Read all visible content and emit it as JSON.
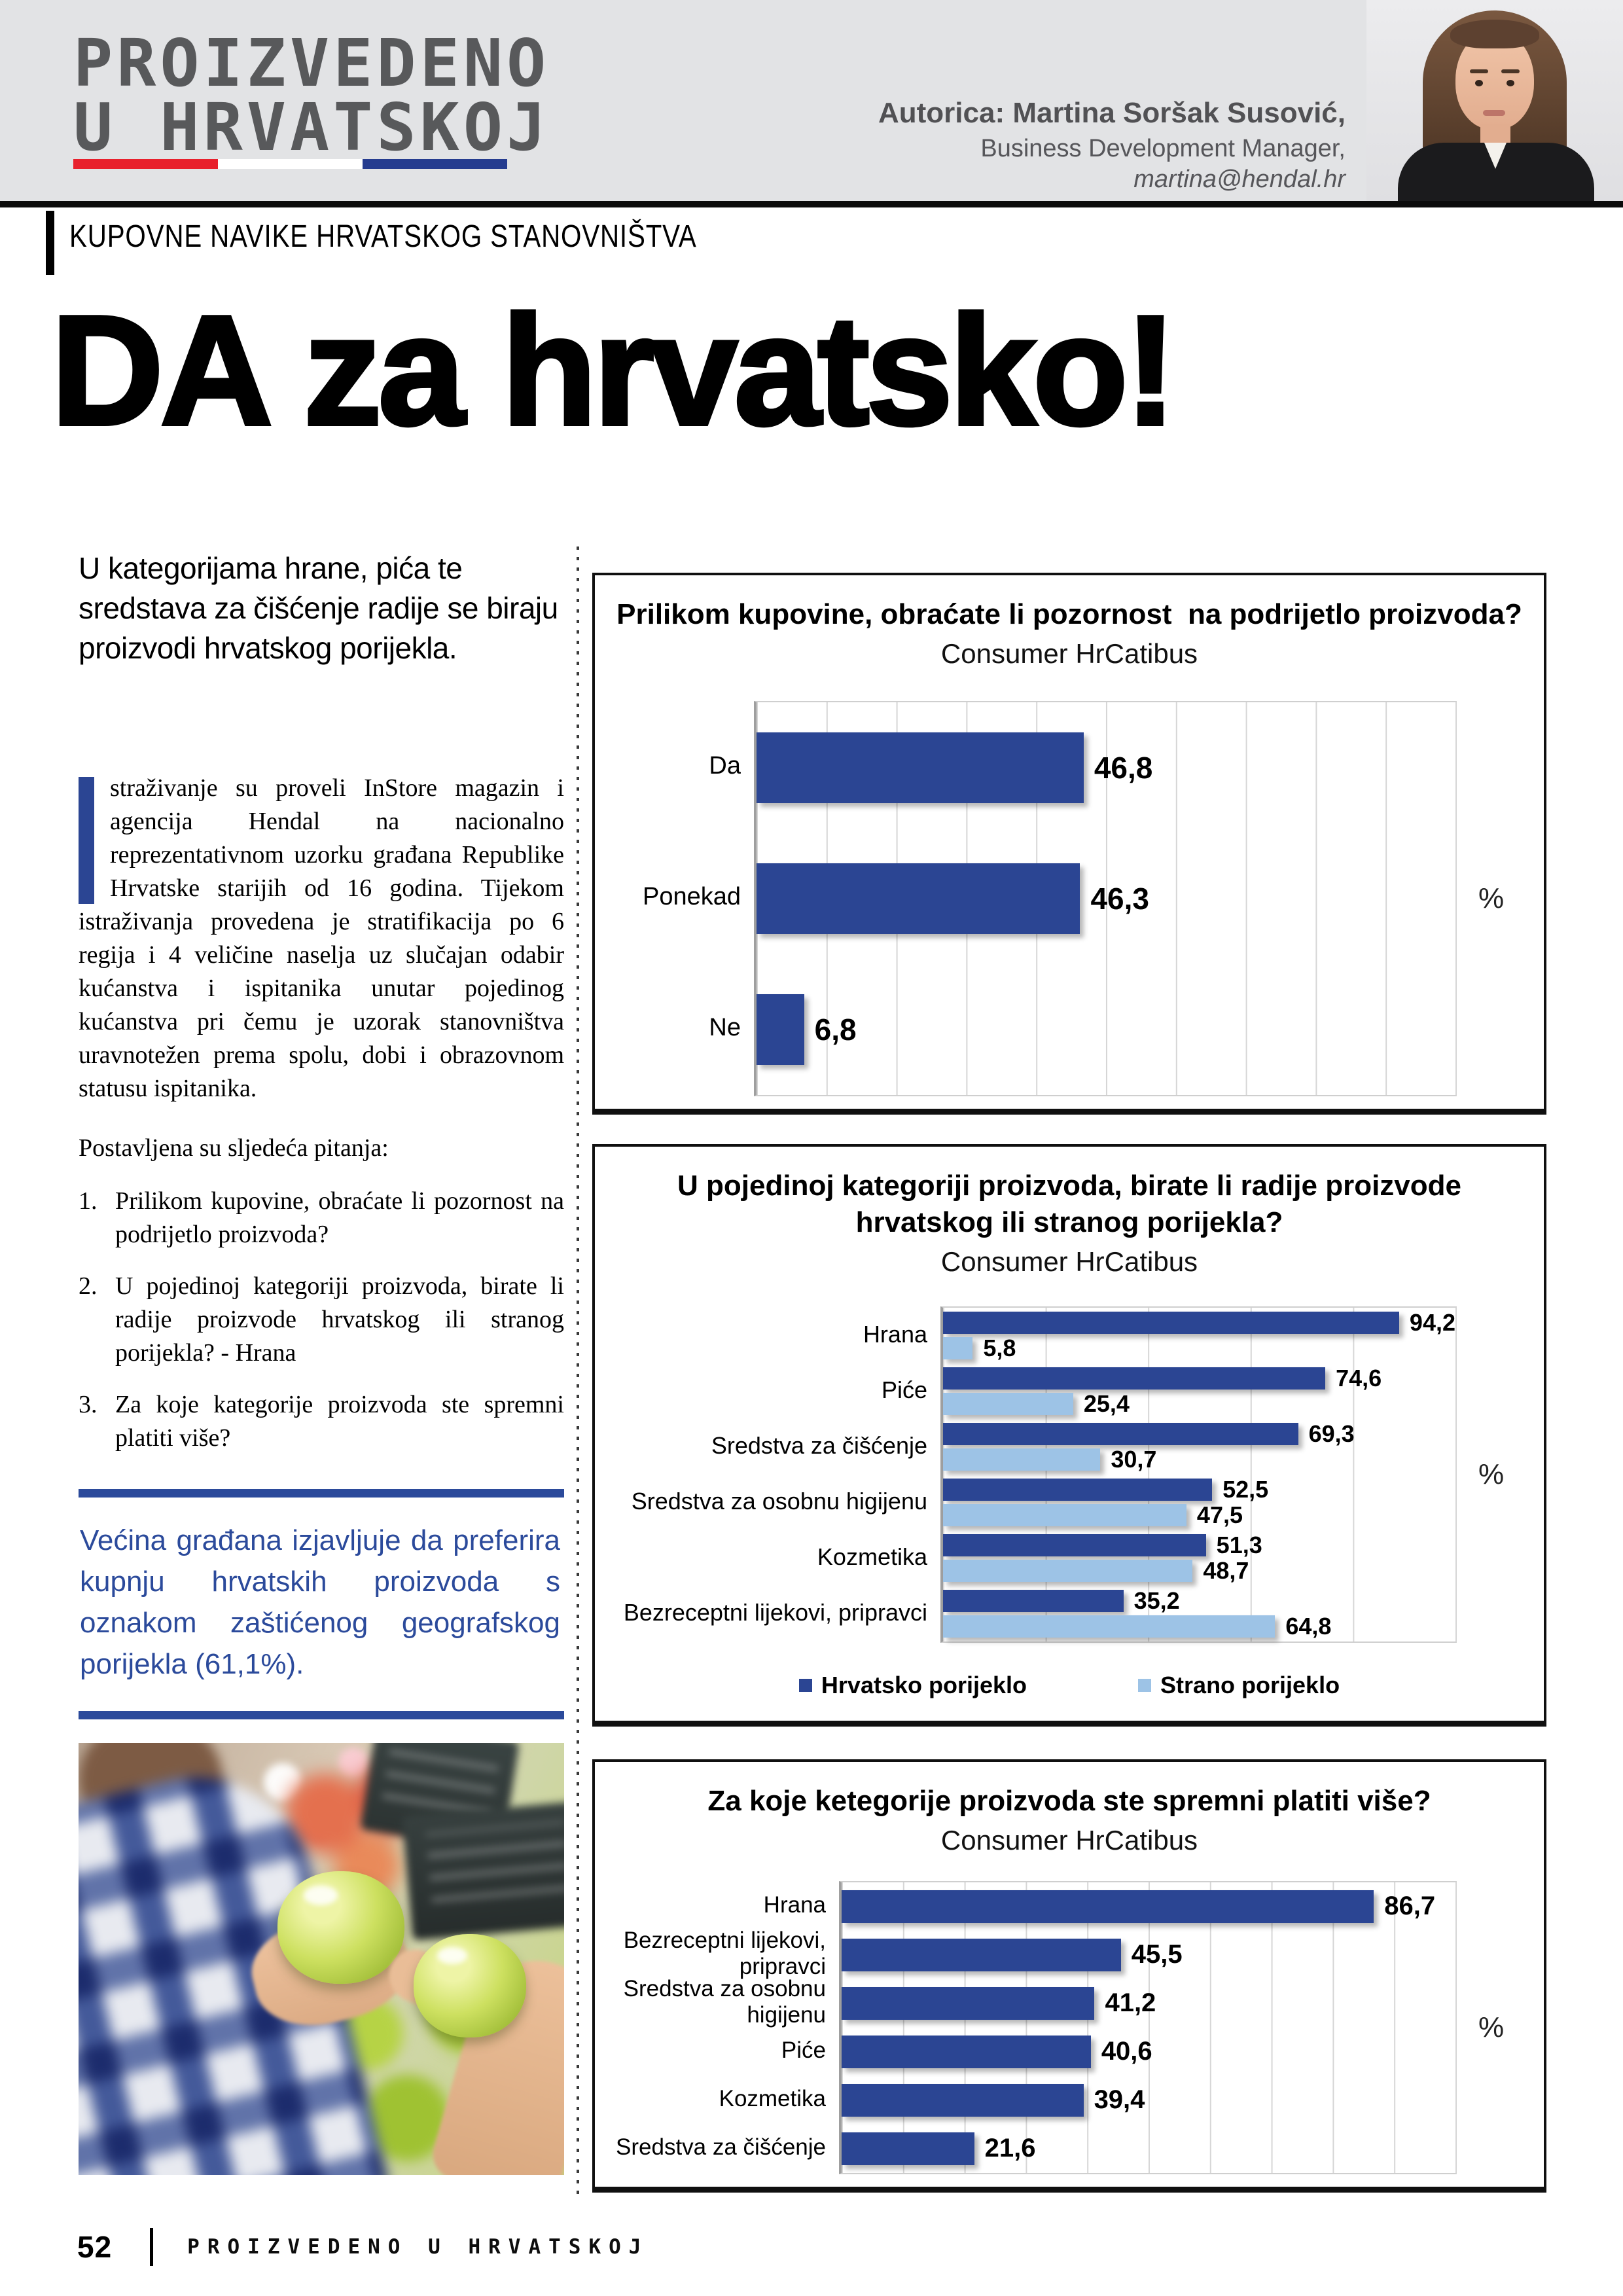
{
  "theme": {
    "navy": "#2B4593",
    "light_blue": "#9DC3E6",
    "callout_blue": "#2B4A9B",
    "logo_gray": "#58595B",
    "band_gray": "#E2E3E5",
    "flag_red": "#E8202C",
    "flag_blue": "#253C8F"
  },
  "header": {
    "logo_line1": "PROIZVEDENO",
    "logo_line2": "U HRVATSKOJ",
    "author_line1": "Autorica: Martina Soršak Susović,",
    "author_line2": "Business Development Manager,",
    "author_line3": "martina@hendal.hr"
  },
  "kicker": "KUPOVNE NAVIKE HRVATSKOG STANOVNIŠTVA",
  "headline": "DA za hrvatsko!",
  "article": {
    "intro": "U kategorijama hrane, pića te sredstava za čišćenje radije se biraju proizvodi hrvatskog porijekla.",
    "body": "straživanje su proveli InStore magazin i agencija Hendal na nacionalno reprezentativnom uzorku građana Republike Hrvatske starijih od 16 godina. Tijekom istraživanja provedena je stratifikacija po 6 regija i 4 veličine naselja uz slučajan odabir kućanstva i ispitanika unutar pojedinog kućanstva pri čemu je uzorak stanovništva uravnotežen prema spolu, dobi i obrazovnom statusu ispitanika.",
    "questions_intro": "Postavljena su sljedeća pitanja:",
    "questions": [
      {
        "num": "1.",
        "text": "Prilikom kupovine, obraćate li pozornost na podrijetlo proizvoda?"
      },
      {
        "num": "2.",
        "text": "U pojedinoj kategoriji proizvoda, birate li radije proizvode hrvatskog ili stranog porijekla? - Hrana"
      },
      {
        "num": "3.",
        "text": "Za koje kategorije proizvoda ste spremni platiti više?"
      }
    ],
    "callout": "Većina građana izjavljuje da preferira kupnju hrvatskih proizvoda s oznakom zaštićenog geografskog porijekla (61,1%)."
  },
  "chart_data": [
    {
      "type": "bar",
      "title": "Prilikom kupovine, obraćate li pozornost  na podrijetlo proizvoda?",
      "subtitle": "Consumer HrCatibus",
      "unit": "%",
      "xlim": [
        0,
        100
      ],
      "grid_step": 10,
      "grid": true,
      "bar_color": "#2B4593",
      "categories": [
        "Da",
        "Ponekad",
        "Ne"
      ],
      "values": [
        46.8,
        46.3,
        6.8
      ],
      "value_labels": [
        "46,8",
        "46,3",
        "6,8"
      ]
    },
    {
      "type": "bar-grouped",
      "title": "U pojedinoj kategoriji proizvoda, birate li radije proizvode hrvatskog ili stranog porijekla?",
      "subtitle": "Consumer HrCatibus",
      "unit": "%",
      "xlim": [
        0,
        100
      ],
      "grid_step": 20,
      "grid": true,
      "legend_position": "bottom",
      "categories": [
        "Hrana",
        "Piće",
        "Sredstva za čišćenje",
        "Sredstva za osobnu higijenu",
        "Kozmetika",
        "Bezreceptni lijekovi, pripravci"
      ],
      "series": [
        {
          "name": "Hrvatsko porijeklo",
          "color": "#2B4593",
          "values": [
            94.2,
            74.6,
            69.3,
            52.5,
            51.3,
            35.2
          ],
          "value_labels": [
            "94,2",
            "74,6",
            "69,3",
            "52,5",
            "51,3",
            "35,2"
          ]
        },
        {
          "name": "Strano porijeklo",
          "color": "#9DC3E6",
          "values": [
            5.8,
            25.4,
            30.7,
            47.5,
            48.7,
            64.8
          ],
          "value_labels": [
            "5,8",
            "25,4",
            "30,7",
            "47,5",
            "48,7",
            "64,8"
          ]
        }
      ]
    },
    {
      "type": "bar",
      "title": "Za koje ketegorije proizvoda ste spremni platiti više?",
      "subtitle": "Consumer HrCatibus",
      "unit": "%",
      "xlim": [
        0,
        100
      ],
      "grid_step": 10,
      "grid": true,
      "bar_color": "#2B4593",
      "categories": [
        "Hrana",
        "Bezreceptni lijekovi,\npripravci",
        "Sredstva za osobnu\nhigijenu",
        "Piće",
        "Kozmetika",
        "Sredstva za čišćenje"
      ],
      "values": [
        86.7,
        45.5,
        41.2,
        40.6,
        39.4,
        21.6
      ],
      "value_labels": [
        "86,7",
        "45,5",
        "41,2",
        "40,6",
        "39,4",
        "21,6"
      ]
    }
  ],
  "footer": {
    "page_number": "52",
    "magazine": "PROIZVEDENO U HRVATSKOJ"
  }
}
